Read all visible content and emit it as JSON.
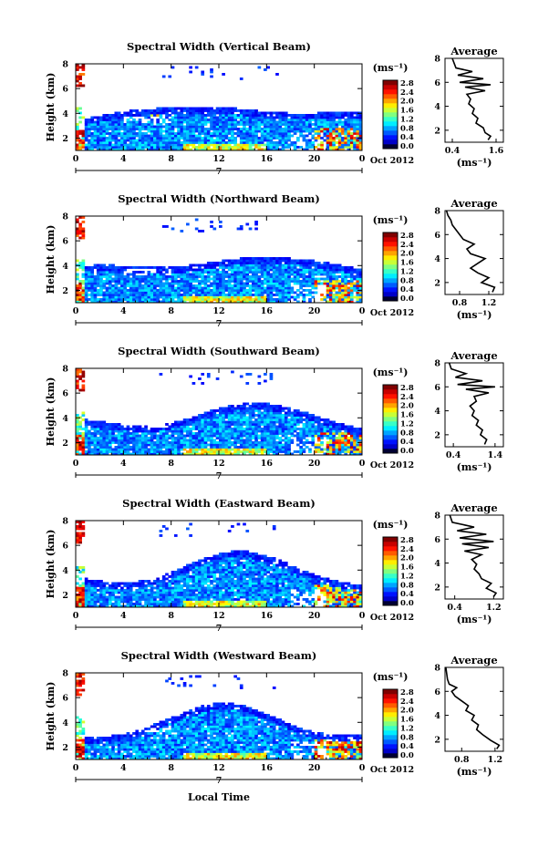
{
  "figure": {
    "height_label": "Height (km)",
    "unit_label": "(ms⁻¹)",
    "date_label": "Oct 2012",
    "date_marker": "7",
    "local_time_label": "Local Time",
    "average_title": "Average"
  },
  "chart_data": [
    {
      "type": "heatmap",
      "title": "Spectral Width (Vertical Beam)",
      "ylabel": "Height (km)",
      "xlabel": "Local Time",
      "x_ticks": [
        "0",
        "4",
        "8",
        "12",
        "16",
        "20",
        "0"
      ],
      "y_ticks": [
        "2",
        "4",
        "6",
        "8"
      ],
      "xlim": [
        0,
        24
      ],
      "ylim": [
        1,
        8
      ],
      "colorbar": {
        "label": "(ms⁻¹)",
        "ticks": [
          "0.0",
          "0.4",
          "0.8",
          "1.2",
          "1.6",
          "2.0",
          "2.4",
          "2.8"
        ],
        "range": [
          0,
          3.0
        ]
      },
      "date": "Oct 2012",
      "average_profile": {
        "title": "Average",
        "xlabel": "(ms⁻¹)",
        "x_ticks": [
          "0.4",
          "1.6"
        ],
        "xlim": [
          0.2,
          1.8
        ],
        "y_ticks": [
          "2",
          "4",
          "6",
          "8"
        ],
        "points": [
          [
            1.38,
            1.2
          ],
          [
            1.45,
            1.5
          ],
          [
            1.3,
            1.8
          ],
          [
            1.25,
            2.2
          ],
          [
            1.05,
            2.6
          ],
          [
            1.1,
            3.0
          ],
          [
            0.95,
            3.4
          ],
          [
            1.0,
            3.8
          ],
          [
            0.85,
            4.2
          ],
          [
            0.9,
            4.6
          ],
          [
            0.8,
            5.0
          ],
          [
            1.3,
            5.3
          ],
          [
            0.75,
            5.6
          ],
          [
            1.45,
            5.8
          ],
          [
            0.6,
            6.0
          ],
          [
            1.25,
            6.3
          ],
          [
            0.55,
            6.6
          ],
          [
            0.95,
            6.9
          ],
          [
            0.5,
            7.2
          ],
          [
            0.45,
            7.6
          ],
          [
            0.4,
            8.0
          ]
        ]
      }
    },
    {
      "type": "heatmap",
      "title": "Spectral Width (Northward Beam)",
      "ylabel": "Height (km)",
      "xlabel": "Local Time",
      "x_ticks": [
        "0",
        "4",
        "8",
        "12",
        "16",
        "20",
        "0"
      ],
      "y_ticks": [
        "2",
        "4",
        "6",
        "8"
      ],
      "xlim": [
        0,
        24
      ],
      "ylim": [
        1,
        8
      ],
      "colorbar": {
        "label": "(ms⁻¹)",
        "ticks": [
          "0.0",
          "0.4",
          "0.8",
          "1.2",
          "1.6",
          "2.0",
          "2.4",
          "2.8"
        ],
        "range": [
          0,
          3.0
        ]
      },
      "date": "Oct 2012",
      "average_profile": {
        "title": "Average",
        "xlabel": "(ms⁻¹)",
        "x_ticks": [
          "0.8",
          "1.2"
        ],
        "xlim": [
          0.6,
          1.4
        ],
        "y_ticks": [
          "2",
          "4",
          "6",
          "8"
        ],
        "points": [
          [
            1.25,
            1.2
          ],
          [
            1.28,
            1.6
          ],
          [
            1.1,
            2.0
          ],
          [
            1.2,
            2.4
          ],
          [
            1.05,
            2.8
          ],
          [
            0.95,
            3.2
          ],
          [
            1.05,
            3.6
          ],
          [
            1.15,
            4.0
          ],
          [
            0.95,
            4.4
          ],
          [
            0.9,
            4.8
          ],
          [
            1.0,
            5.2
          ],
          [
            0.85,
            5.6
          ],
          [
            0.8,
            6.0
          ],
          [
            0.75,
            6.4
          ],
          [
            0.7,
            6.8
          ],
          [
            0.68,
            7.2
          ],
          [
            0.64,
            7.6
          ],
          [
            0.62,
            8.0
          ]
        ]
      }
    },
    {
      "type": "heatmap",
      "title": "Spectral Width (Southward Beam)",
      "ylabel": "Height (km)",
      "xlabel": "Local Time",
      "x_ticks": [
        "0",
        "4",
        "8",
        "12",
        "16",
        "20",
        "0"
      ],
      "y_ticks": [
        "2",
        "4",
        "6",
        "8"
      ],
      "xlim": [
        0,
        24
      ],
      "ylim": [
        1,
        8
      ],
      "colorbar": {
        "label": "(ms⁻¹)",
        "ticks": [
          "0.0",
          "0.4",
          "0.8",
          "1.2",
          "1.6",
          "2.0",
          "2.4",
          "2.8"
        ],
        "range": [
          0,
          3.0
        ]
      },
      "date": "Oct 2012",
      "average_profile": {
        "title": "Average",
        "xlabel": "(ms⁻¹)",
        "x_ticks": [
          "0.4",
          "1.4"
        ],
        "xlim": [
          0.2,
          1.6
        ],
        "y_ticks": [
          "2",
          "4",
          "6",
          "8"
        ],
        "points": [
          [
            1.15,
            1.2
          ],
          [
            1.2,
            1.6
          ],
          [
            1.05,
            2.0
          ],
          [
            1.1,
            2.4
          ],
          [
            0.95,
            2.8
          ],
          [
            1.0,
            3.2
          ],
          [
            0.85,
            3.6
          ],
          [
            0.9,
            4.0
          ],
          [
            0.8,
            4.4
          ],
          [
            0.95,
            4.8
          ],
          [
            0.9,
            5.2
          ],
          [
            1.25,
            5.5
          ],
          [
            0.7,
            5.8
          ],
          [
            1.4,
            6.0
          ],
          [
            0.5,
            6.2
          ],
          [
            1.1,
            6.5
          ],
          [
            0.45,
            6.8
          ],
          [
            0.7,
            7.1
          ],
          [
            0.35,
            7.5
          ],
          [
            0.3,
            8.0
          ]
        ]
      }
    },
    {
      "type": "heatmap",
      "title": "Spectral Width (Eastward Beam)",
      "ylabel": "Height (km)",
      "xlabel": "Local Time",
      "x_ticks": [
        "0",
        "4",
        "8",
        "12",
        "16",
        "20",
        "0"
      ],
      "y_ticks": [
        "2",
        "4",
        "6",
        "8"
      ],
      "xlim": [
        0,
        24
      ],
      "ylim": [
        1,
        8
      ],
      "colorbar": {
        "label": "(ms⁻¹)",
        "ticks": [
          "0.0",
          "0.4",
          "0.8",
          "1.2",
          "1.6",
          "2.0",
          "2.4",
          "2.8"
        ],
        "range": [
          0,
          3.0
        ]
      },
      "date": "Oct 2012",
      "average_profile": {
        "title": "Average",
        "xlabel": "(ms⁻¹)",
        "x_ticks": [
          "0.4",
          "1.2"
        ],
        "xlim": [
          0.2,
          1.4
        ],
        "y_ticks": [
          "2",
          "4",
          "6",
          "8"
        ],
        "points": [
          [
            1.2,
            1.2
          ],
          [
            1.25,
            1.5
          ],
          [
            1.05,
            1.9
          ],
          [
            1.15,
            2.3
          ],
          [
            0.95,
            2.7
          ],
          [
            0.9,
            3.1
          ],
          [
            0.8,
            3.5
          ],
          [
            0.85,
            3.9
          ],
          [
            0.75,
            4.3
          ],
          [
            0.95,
            4.7
          ],
          [
            0.6,
            5.0
          ],
          [
            1.1,
            5.3
          ],
          [
            0.55,
            5.6
          ],
          [
            1.2,
            5.8
          ],
          [
            0.5,
            6.1
          ],
          [
            1.05,
            6.4
          ],
          [
            0.45,
            6.7
          ],
          [
            0.8,
            7.0
          ],
          [
            0.35,
            7.4
          ],
          [
            0.3,
            8.0
          ]
        ]
      }
    },
    {
      "type": "heatmap",
      "title": "Spectral Width (Westward Beam)",
      "ylabel": "Height (km)",
      "xlabel": "Local Time",
      "x_ticks": [
        "0",
        "4",
        "8",
        "12",
        "16",
        "20",
        "0"
      ],
      "y_ticks": [
        "2",
        "4",
        "6",
        "8"
      ],
      "xlim": [
        0,
        24
      ],
      "ylim": [
        1,
        8
      ],
      "colorbar": {
        "label": "(ms⁻¹)",
        "ticks": [
          "0.0",
          "0.4",
          "0.8",
          "1.2",
          "1.6",
          "2.0",
          "2.4",
          "2.8"
        ],
        "range": [
          0,
          3.0
        ]
      },
      "date": "Oct 2012",
      "average_profile": {
        "title": "Average",
        "xlabel": "(ms⁻¹)",
        "x_ticks": [
          "0.8",
          "1.2"
        ],
        "xlim": [
          0.6,
          1.3
        ],
        "y_ticks": [
          "2",
          "4",
          "6",
          "8"
        ],
        "points": [
          [
            1.22,
            1.2
          ],
          [
            1.25,
            1.5
          ],
          [
            1.15,
            1.9
          ],
          [
            1.05,
            2.4
          ],
          [
            0.98,
            2.8
          ],
          [
            1.0,
            3.2
          ],
          [
            0.92,
            3.6
          ],
          [
            0.95,
            4.0
          ],
          [
            0.85,
            4.4
          ],
          [
            0.88,
            4.8
          ],
          [
            0.8,
            5.2
          ],
          [
            0.72,
            5.6
          ],
          [
            0.68,
            6.0
          ],
          [
            0.74,
            6.3
          ],
          [
            0.65,
            6.6
          ],
          [
            0.63,
            7.0
          ],
          [
            0.62,
            7.5
          ],
          [
            0.61,
            8.0
          ]
        ]
      }
    }
  ]
}
